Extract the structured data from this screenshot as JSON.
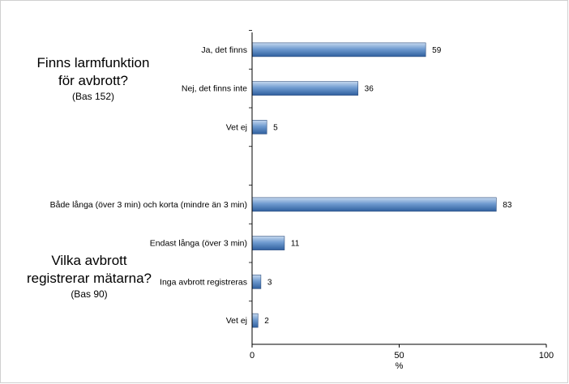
{
  "questions": [
    {
      "title_line1": "Finns larmfunktion",
      "title_line2": "för avbrott?",
      "base": "(Bas 152)"
    },
    {
      "title_line1": "Vilka avbrott",
      "title_line2": "registrerar mätarna?",
      "base": "(Bas 90)"
    }
  ],
  "chart_data": {
    "type": "bar",
    "orientation": "horizontal",
    "categories": [
      "Ja, det finns",
      "Nej, det finns inte",
      "Vet ej",
      "",
      "Både långa (över 3 min) och korta (mindre än 3 min)",
      "Endast långa (över 3 min)",
      "Inga avbrott registreras",
      "Vet ej"
    ],
    "values": [
      59,
      36,
      5,
      null,
      83,
      11,
      3,
      2
    ],
    "data_labels": [
      "59",
      "36",
      "5",
      "",
      "83",
      "11",
      "3",
      "2"
    ],
    "xlabel": "%",
    "xlim": [
      0,
      100
    ],
    "xticks": [
      0,
      50,
      100
    ],
    "xtick_labels": [
      "0",
      "50",
      "100"
    ],
    "grid": false,
    "bar_color": "#4f81bd"
  }
}
